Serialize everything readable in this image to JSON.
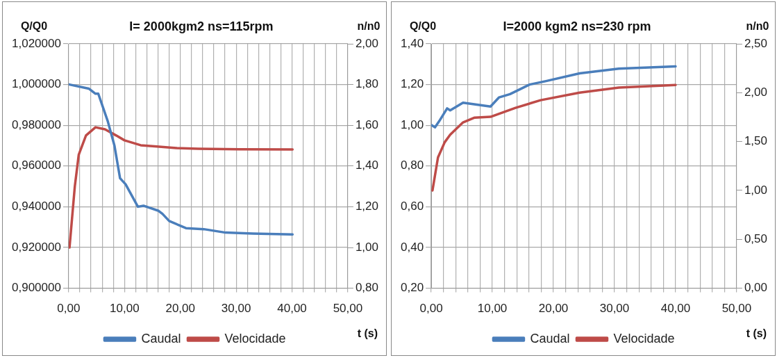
{
  "chart_data": [
    {
      "type": "line",
      "title": "I= 2000kgm2 ns=115rpm",
      "ylabel": "Q/Q0",
      "y2label": "n/n0",
      "xlabel": "t (s)",
      "grid": true,
      "legend": "bottom",
      "marker": "none",
      "line_style": "solid",
      "xlim": [
        0,
        50
      ],
      "xticks": [
        {
          "value": 0,
          "label": "0,00"
        },
        {
          "value": 2,
          "label": null
        },
        {
          "value": 4,
          "label": null
        },
        {
          "value": 6,
          "label": null
        },
        {
          "value": 8,
          "label": null
        },
        {
          "value": 10,
          "label": "10,00"
        },
        {
          "value": 12,
          "label": null
        },
        {
          "value": 14,
          "label": null
        },
        {
          "value": 16,
          "label": null
        },
        {
          "value": 18,
          "label": null
        },
        {
          "value": 20,
          "label": "20,00"
        },
        {
          "value": 22,
          "label": null
        },
        {
          "value": 24,
          "label": null
        },
        {
          "value": 26,
          "label": null
        },
        {
          "value": 28,
          "label": null
        },
        {
          "value": 30,
          "label": "30,00"
        },
        {
          "value": 32,
          "label": null
        },
        {
          "value": 34,
          "label": null
        },
        {
          "value": 36,
          "label": null
        },
        {
          "value": 38,
          "label": null
        },
        {
          "value": 40,
          "label": "40,00"
        },
        {
          "value": 42,
          "label": null
        },
        {
          "value": 44,
          "label": null
        },
        {
          "value": 46,
          "label": null
        },
        {
          "value": 48,
          "label": null
        },
        {
          "value": 50,
          "label": "50,00"
        }
      ],
      "ylim": [
        0.9,
        1.02
      ],
      "yticks": [
        {
          "value": 0.9,
          "label": "0,900000"
        },
        {
          "value": 0.92,
          "label": "0,920000"
        },
        {
          "value": 0.94,
          "label": "0,940000"
        },
        {
          "value": 0.96,
          "label": "0,960000"
        },
        {
          "value": 0.98,
          "label": "0,980000"
        },
        {
          "value": 1.0,
          "label": "1,000000"
        },
        {
          "value": 1.02,
          "label": "1,020000"
        }
      ],
      "y2lim": [
        0.8,
        2.0
      ],
      "y2ticks": [
        {
          "value": 0.8,
          "label": "0,80"
        },
        {
          "value": 1.0,
          "label": "1,00"
        },
        {
          "value": 1.2,
          "label": "1,20"
        },
        {
          "value": 1.4,
          "label": "1,40"
        },
        {
          "value": 1.6,
          "label": "1,60"
        },
        {
          "value": 1.8,
          "label": "1,80"
        },
        {
          "value": 2.0,
          "label": "2,00"
        }
      ],
      "series": [
        {
          "name": "Caudal",
          "color": "#4a7ebb",
          "x": [
            0.15,
            3.6,
            4.8,
            5.3,
            7.0,
            8.2,
            9.2,
            10.2,
            12.4,
            13.4,
            16.1,
            16.8,
            18.0,
            21.0,
            24.2,
            28.1,
            33.0,
            40.1
          ],
          "values": [
            1.0,
            0.998,
            0.9955,
            0.9955,
            0.982,
            0.97,
            0.954,
            0.951,
            0.94,
            0.9405,
            0.938,
            0.9365,
            0.933,
            0.9295,
            0.929,
            0.9273,
            0.9268,
            0.9264
          ]
        },
        {
          "name": "Velocidade",
          "color": "#be4b48",
          "axis": "y2",
          "x": [
            0.15,
            1.1,
            1.8,
            3.1,
            4.8,
            6.5,
            8.5,
            10.0,
            12.9,
            15.8,
            19.3,
            23.2,
            30.5,
            40.1
          ],
          "values": [
            1.0,
            1.3,
            1.455,
            1.55,
            1.59,
            1.58,
            1.55,
            1.526,
            1.502,
            1.496,
            1.488,
            1.485,
            1.482,
            1.481
          ]
        }
      ]
    },
    {
      "type": "line",
      "title": "I=2000 kgm2 ns=230 rpm",
      "ylabel": "Q/Q0",
      "y2label": "n/n0",
      "xlabel": "t (s)",
      "grid": true,
      "legend": "bottom",
      "marker": "none",
      "line_style": "solid",
      "xlim": [
        0,
        50
      ],
      "xticks": [
        {
          "value": 0,
          "label": "0,00"
        },
        {
          "value": 2,
          "label": null
        },
        {
          "value": 4,
          "label": null
        },
        {
          "value": 6,
          "label": null
        },
        {
          "value": 8,
          "label": null
        },
        {
          "value": 10,
          "label": "10,00"
        },
        {
          "value": 12,
          "label": null
        },
        {
          "value": 14,
          "label": null
        },
        {
          "value": 16,
          "label": null
        },
        {
          "value": 18,
          "label": null
        },
        {
          "value": 20,
          "label": "20,00"
        },
        {
          "value": 22,
          "label": null
        },
        {
          "value": 24,
          "label": null
        },
        {
          "value": 26,
          "label": null
        },
        {
          "value": 28,
          "label": null
        },
        {
          "value": 30,
          "label": "30,00"
        },
        {
          "value": 32,
          "label": null
        },
        {
          "value": 34,
          "label": null
        },
        {
          "value": 36,
          "label": null
        },
        {
          "value": 38,
          "label": null
        },
        {
          "value": 40,
          "label": "40,00"
        },
        {
          "value": 42,
          "label": null
        },
        {
          "value": 44,
          "label": null
        },
        {
          "value": 46,
          "label": null
        },
        {
          "value": 48,
          "label": null
        },
        {
          "value": 50,
          "label": "50,00"
        }
      ],
      "ylim": [
        0.2,
        1.4
      ],
      "yticks": [
        {
          "value": 0.2,
          "label": "0,20"
        },
        {
          "value": 0.4,
          "label": "0,40"
        },
        {
          "value": 0.6,
          "label": "0,60"
        },
        {
          "value": 0.8,
          "label": "0,80"
        },
        {
          "value": 1.0,
          "label": "1,00"
        },
        {
          "value": 1.2,
          "label": "1,20"
        },
        {
          "value": 1.4,
          "label": "1,40"
        }
      ],
      "y2lim": [
        0,
        2.5
      ],
      "y2ticks": [
        {
          "value": 0,
          "label": "0,00"
        },
        {
          "value": 0.5,
          "label": "0,50"
        },
        {
          "value": 1.0,
          "label": "1,00"
        },
        {
          "value": 1.5,
          "label": "1,50"
        },
        {
          "value": 2.0,
          "label": "2,00"
        },
        {
          "value": 2.5,
          "label": "2,50"
        }
      ],
      "series": [
        {
          "name": "Caudal",
          "color": "#4a7ebb",
          "x": [
            0.1,
            0.6,
            1.3,
            2.6,
            3.1,
            5.2,
            9.7,
            11.1,
            12.9,
            16.1,
            18.8,
            24.3,
            30.7,
            40.0
          ],
          "values": [
            1.0,
            0.99,
            1.02,
            1.083,
            1.073,
            1.111,
            1.092,
            1.137,
            1.153,
            1.2,
            1.217,
            1.255,
            1.278,
            1.289
          ]
        },
        {
          "name": "Velocidade",
          "color": "#be4b48",
          "axis": "y2",
          "x": [
            0.2,
            1.1,
            2.2,
            3.1,
            5.2,
            7.1,
            9.7,
            13.8,
            17.9,
            24.3,
            30.7,
            40.0
          ],
          "values": [
            1.0,
            1.337,
            1.493,
            1.571,
            1.696,
            1.745,
            1.753,
            1.845,
            1.923,
            2.0,
            2.052,
            2.079
          ]
        }
      ]
    }
  ]
}
